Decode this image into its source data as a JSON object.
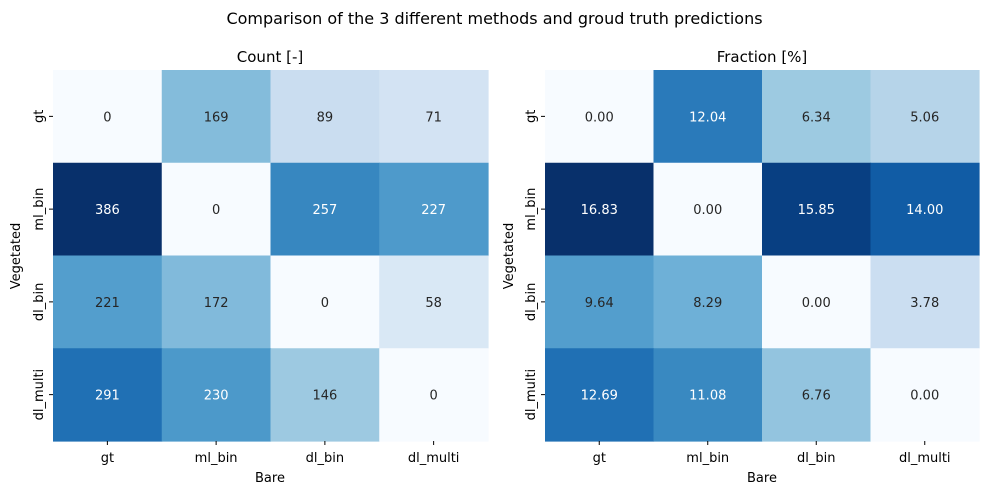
{
  "figure": {
    "suptitle": "Comparison of the 3 different methods and groud truth predictions"
  },
  "chart_data": [
    {
      "type": "heatmap",
      "title": "Count [-]",
      "xlabel": "Bare",
      "ylabel": "Vegetated",
      "x_categories": [
        "gt",
        "ml_bin",
        "dl_bin",
        "dl_multi"
      ],
      "y_categories": [
        "gt",
        "ml_bin",
        "dl_bin",
        "dl_multi"
      ],
      "values": [
        [
          0,
          169,
          89,
          71
        ],
        [
          386,
          0,
          257,
          227
        ],
        [
          221,
          172,
          0,
          58
        ],
        [
          291,
          230,
          146,
          0
        ]
      ],
      "labels": [
        [
          "0",
          "169",
          "89",
          "71"
        ],
        [
          "386",
          "0",
          "257",
          "227"
        ],
        [
          "221",
          "172",
          "0",
          "58"
        ],
        [
          "291",
          "230",
          "146",
          "0"
        ]
      ],
      "colormap": "Blues",
      "vmin": 0,
      "vmax": 386
    },
    {
      "type": "heatmap",
      "title": "Fraction [%]",
      "xlabel": "Bare",
      "ylabel": "Vegetated",
      "x_categories": [
        "gt",
        "ml_bin",
        "dl_bin",
        "dl_multi"
      ],
      "y_categories": [
        "gt",
        "ml_bin",
        "dl_bin",
        "dl_multi"
      ],
      "values": [
        [
          0.0,
          12.04,
          6.34,
          5.06
        ],
        [
          16.83,
          0.0,
          15.85,
          14.0
        ],
        [
          9.64,
          8.29,
          0.0,
          3.78
        ],
        [
          12.69,
          11.08,
          6.76,
          0.0
        ]
      ],
      "labels": [
        [
          "0.00",
          "12.04",
          "6.34",
          "5.06"
        ],
        [
          "16.83",
          "0.00",
          "15.85",
          "14.00"
        ],
        [
          "9.64",
          "8.29",
          "0.00",
          "3.78"
        ],
        [
          "12.69",
          "11.08",
          "6.76",
          "0.00"
        ]
      ],
      "colormap": "Blues",
      "vmin": 0,
      "vmax": 16.83
    }
  ]
}
